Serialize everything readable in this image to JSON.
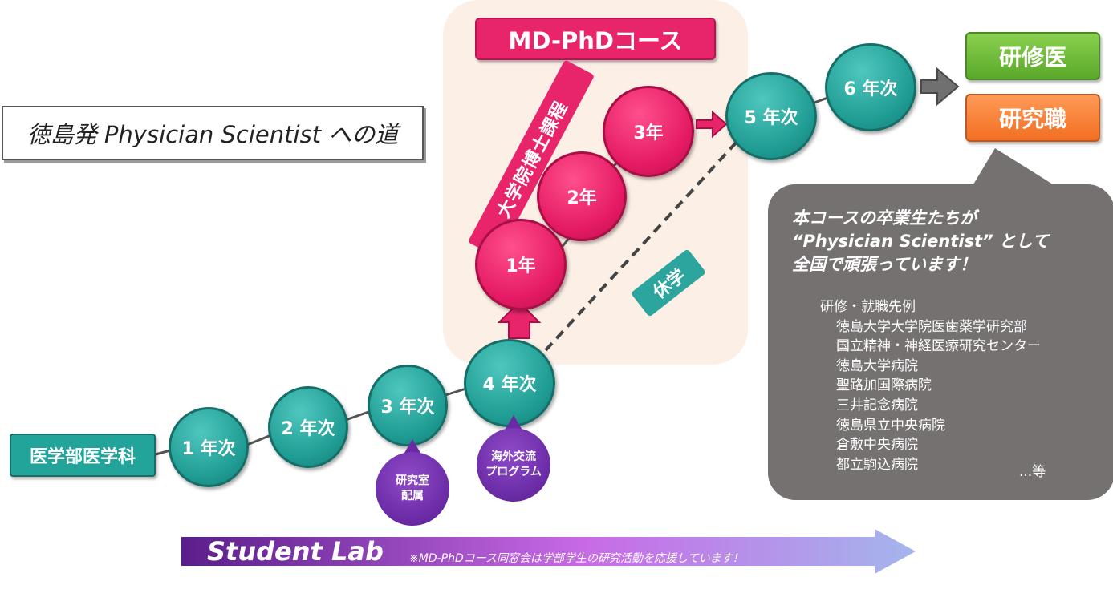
{
  "title": "徳島発 Physician Scientist への道",
  "md_phd": {
    "label": "MD-PhDコース",
    "program": "大学院博士課程",
    "years": [
      "1年",
      "2年",
      "3年"
    ],
    "leave": "休学"
  },
  "department": "医学部医学科",
  "student_years": [
    "1 年次",
    "2 年次",
    "3 年次",
    "4 年次",
    "5 年次",
    "6 年次"
  ],
  "drops": {
    "lab": "研究室\n配属",
    "exchange": "海外交流\nプログラム"
  },
  "outcomes": [
    "研修医",
    "研究職"
  ],
  "bubble": {
    "lead": [
      "本コースの卒業生たちが",
      "“Physician Scientist” として",
      "全国で頑張っています！"
    ],
    "list_title": "研修・就職先例",
    "list": [
      "徳島大学大学院医歯薬学研究部",
      "国立精神・神経医療研究センター",
      "徳島大学病院",
      "聖路加国際病院",
      "三井記念病院",
      "徳島県立中央病院",
      "倉敷中央病院",
      "都立駒込病院"
    ],
    "etc": "...等"
  },
  "student_lab": {
    "title": "Student Lab",
    "note": "※MD-PhDコース同窓会は学部学生の研究活動を応援しています！"
  }
}
